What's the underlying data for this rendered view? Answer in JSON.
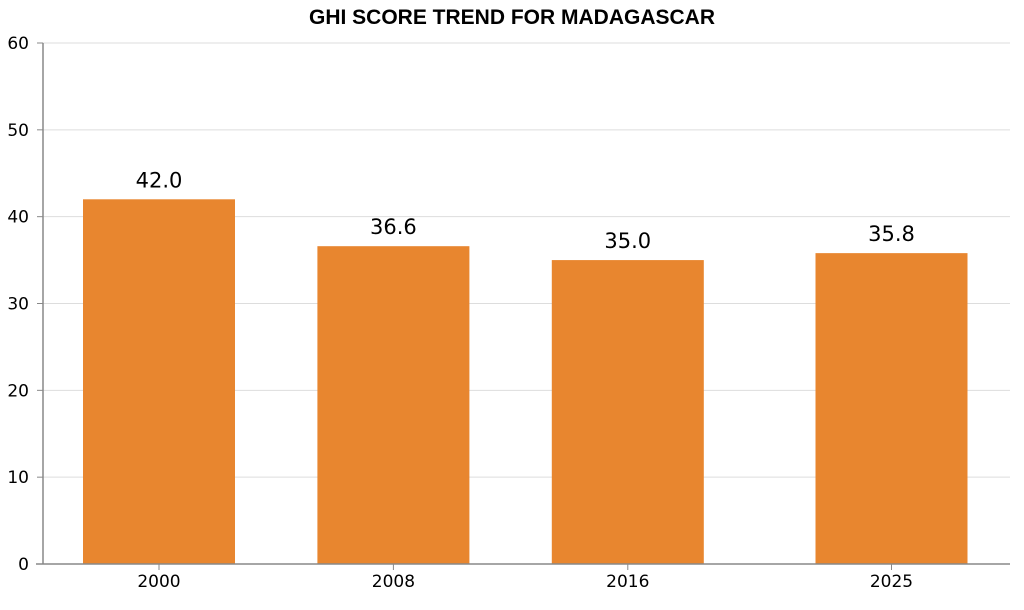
{
  "chart_data": {
    "type": "bar",
    "title": "GHI SCORE TREND FOR MADAGASCAR",
    "xlabel": "",
    "ylabel": "",
    "categories": [
      "2000",
      "2008",
      "2016",
      "2025"
    ],
    "values": [
      42.0,
      36.6,
      35.0,
      35.8
    ],
    "data_labels": [
      "42.0",
      "36.6",
      "35.0",
      "35.8"
    ],
    "ylim": [
      0,
      60
    ],
    "yticks": [
      0,
      10,
      20,
      30,
      40,
      50,
      60
    ],
    "x_scale": "time-proportional",
    "grid": "horizontal",
    "bar_color": "#E8862F",
    "grid_color": "#DDDDDD",
    "axis_color": "#888888"
  }
}
